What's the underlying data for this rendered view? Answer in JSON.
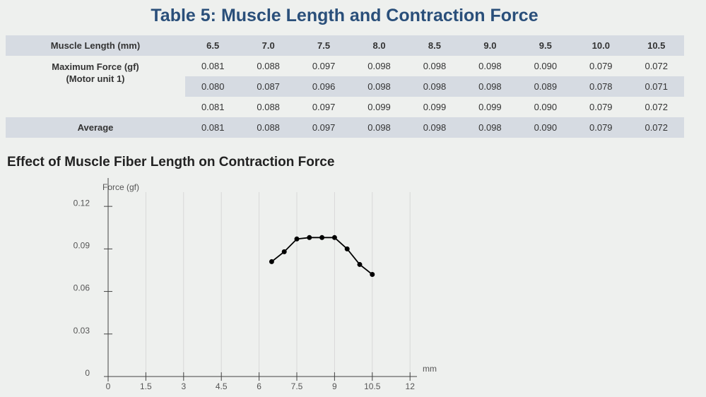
{
  "table": {
    "title": "Table 5: Muscle Length and Contraction Force",
    "header": [
      "Muscle Length (mm)",
      "6.5",
      "7.0",
      "7.5",
      "8.0",
      "8.5",
      "9.0",
      "9.5",
      "10.0",
      "10.5"
    ],
    "group_label": [
      "Maximum Force (gf)",
      "(Motor unit 1)"
    ],
    "trials": [
      [
        "0.081",
        "0.088",
        "0.097",
        "0.098",
        "0.098",
        "0.098",
        "0.090",
        "0.079",
        "0.072"
      ],
      [
        "0.080",
        "0.087",
        "0.096",
        "0.098",
        "0.098",
        "0.098",
        "0.089",
        "0.078",
        "0.071"
      ],
      [
        "0.081",
        "0.088",
        "0.097",
        "0.099",
        "0.099",
        "0.099",
        "0.090",
        "0.079",
        "0.072"
      ]
    ],
    "average": {
      "label": "Average",
      "values": [
        "0.081",
        "0.088",
        "0.097",
        "0.098",
        "0.098",
        "0.098",
        "0.090",
        "0.079",
        "0.072"
      ]
    }
  },
  "chart_data": {
    "type": "line",
    "title": "Effect of Muscle Fiber Length on Contraction Force",
    "y_label": "Force (gf)",
    "x_label": "mm",
    "x": [
      6.5,
      7.0,
      7.5,
      8.0,
      8.5,
      9.0,
      9.5,
      10.0,
      10.5
    ],
    "values": [
      0.081,
      0.088,
      0.097,
      0.098,
      0.098,
      0.098,
      0.09,
      0.079,
      0.072
    ],
    "color": "#000000",
    "xlim": [
      0,
      12.5
    ],
    "xticks": [
      0,
      1.5,
      3,
      4.5,
      6,
      7.5,
      9,
      10.5,
      12
    ],
    "ylim": [
      0,
      0.14
    ],
    "yticks": [
      0,
      0.03,
      0.06,
      0.09,
      0.12
    ],
    "grid": true
  }
}
